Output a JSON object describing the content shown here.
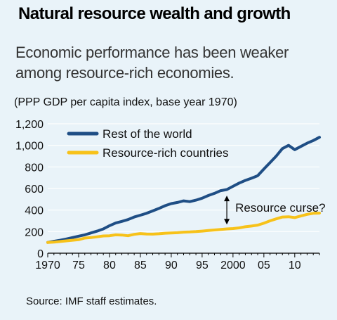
{
  "title": "Natural resource wealth and growth",
  "subtitle": "Economic performance has been weaker among resource-rich economies.",
  "note": "(PPP GDP per capita index, base year 1970)",
  "source": "Source: IMF staff estimates.",
  "colors": {
    "background": "#e9f3f9",
    "rest_of_world": "#1f4e85",
    "resource_rich": "#f7c21a",
    "axis": "#000000",
    "gridline": "#ffffff"
  },
  "chart_data": {
    "type": "line",
    "xlim": [
      1970,
      2014
    ],
    "ylim": [
      0,
      1200
    ],
    "x_tick_labels": [
      "1970",
      "75",
      "80",
      "85",
      "90",
      "95",
      "2000",
      "05",
      "10"
    ],
    "x_tick_values": [
      1970,
      1975,
      1980,
      1985,
      1990,
      1995,
      2000,
      2005,
      2010
    ],
    "y_tick_labels": [
      "0",
      "200",
      "400",
      "600",
      "800",
      "1,000",
      "1,200"
    ],
    "y_tick_values": [
      0,
      200,
      400,
      600,
      800,
      1000,
      1200
    ],
    "grid": "horizontal",
    "legend_position": "top-left",
    "series": [
      {
        "name": "Rest of the world",
        "color": "#1f4e85",
        "x": [
          1970,
          1971,
          1972,
          1973,
          1974,
          1975,
          1976,
          1977,
          1978,
          1979,
          1980,
          1981,
          1982,
          1983,
          1984,
          1985,
          1986,
          1987,
          1988,
          1989,
          1990,
          1991,
          1992,
          1993,
          1994,
          1995,
          1996,
          1997,
          1998,
          1999,
          2000,
          2001,
          2002,
          2003,
          2004,
          2005,
          2006,
          2007,
          2008,
          2009,
          2010,
          2011,
          2012,
          2013,
          2014
        ],
        "values": [
          100,
          110,
          120,
          132,
          145,
          158,
          170,
          188,
          205,
          225,
          255,
          280,
          295,
          312,
          335,
          352,
          370,
          392,
          415,
          440,
          460,
          470,
          485,
          478,
          492,
          510,
          535,
          555,
          580,
          590,
          620,
          650,
          675,
          695,
          718,
          780,
          840,
          900,
          970,
          1000,
          960,
          990,
          1020,
          1045,
          1075
        ]
      },
      {
        "name": "Resource-rich countries",
        "color": "#f7c21a",
        "x": [
          1970,
          1971,
          1972,
          1973,
          1974,
          1975,
          1976,
          1977,
          1978,
          1979,
          1980,
          1981,
          1982,
          1983,
          1984,
          1985,
          1986,
          1987,
          1988,
          1989,
          1990,
          1991,
          1992,
          1993,
          1994,
          1995,
          1996,
          1997,
          1998,
          1999,
          2000,
          2001,
          2002,
          2003,
          2004,
          2005,
          2006,
          2007,
          2008,
          2009,
          2010,
          2011,
          2012,
          2013,
          2014
        ],
        "values": [
          100,
          103,
          108,
          114,
          120,
          125,
          140,
          145,
          152,
          160,
          162,
          170,
          168,
          162,
          175,
          182,
          178,
          177,
          180,
          185,
          188,
          190,
          195,
          197,
          200,
          205,
          210,
          215,
          220,
          225,
          228,
          235,
          245,
          252,
          260,
          278,
          300,
          318,
          335,
          338,
          330,
          345,
          360,
          370,
          372
        ]
      }
    ],
    "annotation": {
      "text": "Resource curse?",
      "x": 1999,
      "y_from": 240,
      "y_to": 560
    }
  }
}
